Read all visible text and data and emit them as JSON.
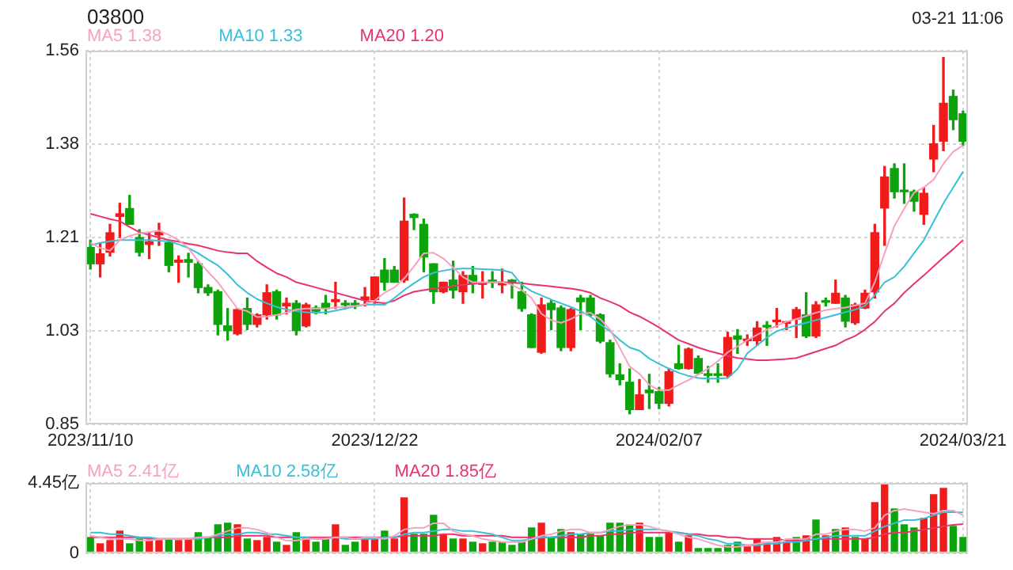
{
  "chart_data": [
    {
      "type": "candlestick",
      "title": "03800",
      "annotations": [
        "03-21 11:06"
      ],
      "legend": "top left",
      "grid": true,
      "categories": [
        "2023/11/10",
        null,
        null,
        null,
        null,
        null,
        null,
        null,
        null,
        null,
        null,
        null,
        null,
        null,
        null,
        null,
        null,
        null,
        null,
        null,
        null,
        null,
        null,
        null,
        null,
        null,
        null,
        null,
        null,
        "2023/12/22",
        null,
        null,
        null,
        null,
        null,
        null,
        null,
        null,
        null,
        null,
        null,
        null,
        null,
        null,
        null,
        null,
        null,
        null,
        null,
        null,
        null,
        null,
        null,
        null,
        null,
        null,
        null,
        null,
        "2024/02/07",
        null,
        null,
        null,
        null,
        null,
        null,
        null,
        null,
        null,
        null,
        null,
        null,
        null,
        null,
        null,
        null,
        null,
        null,
        null,
        null,
        null,
        null,
        null,
        null,
        null,
        null,
        null,
        null,
        null,
        null,
        "2024/03/21"
      ],
      "ylim": [
        0.85,
        1.56
      ],
      "yticks": [
        {
          "value": 0.85,
          "label": "0.85"
        },
        {
          "value": 1.0275,
          "label": "1.03"
        },
        {
          "value": 1.205,
          "label": "1.21"
        },
        {
          "value": 1.3825,
          "label": "1.38"
        },
        {
          "value": 1.56,
          "label": "1.56"
        }
      ],
      "ohlc": [
        [
          1.186,
          1.2,
          1.145,
          1.155
        ],
        [
          1.155,
          1.195,
          1.13,
          1.174
        ],
        [
          1.177,
          1.23,
          1.17,
          1.214
        ],
        [
          1.245,
          1.27,
          1.205,
          1.25
        ],
        [
          1.26,
          1.285,
          1.23,
          1.23
        ],
        [
          1.205,
          1.22,
          1.17,
          1.177
        ],
        [
          1.192,
          1.215,
          1.165,
          1.197
        ],
        [
          1.21,
          1.232,
          1.19,
          1.215
        ],
        [
          1.195,
          1.2,
          1.14,
          1.152
        ],
        [
          1.158,
          1.17,
          1.12,
          1.162
        ],
        [
          1.163,
          1.175,
          1.13,
          1.158
        ],
        [
          1.155,
          1.16,
          1.1,
          1.11
        ],
        [
          1.11,
          1.115,
          1.095,
          1.1
        ],
        [
          1.102,
          1.105,
          1.02,
          1.04
        ],
        [
          1.037,
          1.07,
          1.01,
          1.028
        ],
        [
          1.022,
          1.07,
          1.02,
          1.068
        ],
        [
          1.07,
          1.09,
          1.03,
          1.04
        ],
        [
          1.04,
          1.06,
          1.035,
          1.058
        ],
        [
          1.058,
          1.115,
          1.05,
          1.1
        ],
        [
          1.102,
          1.105,
          1.05,
          1.058
        ],
        [
          1.075,
          1.09,
          1.06,
          1.08
        ],
        [
          1.08,
          1.085,
          1.02,
          1.028
        ],
        [
          1.037,
          1.08,
          1.035,
          1.077
        ],
        [
          1.071,
          1.075,
          1.06,
          1.065
        ],
        [
          1.08,
          1.095,
          1.06,
          1.07
        ],
        [
          1.083,
          1.12,
          1.07,
          1.087
        ],
        [
          1.08,
          1.085,
          1.07,
          1.077
        ],
        [
          1.08,
          1.085,
          1.07,
          1.077
        ],
        [
          1.087,
          1.11,
          1.075,
          1.092
        ],
        [
          1.087,
          1.13,
          1.08,
          1.13
        ],
        [
          1.143,
          1.165,
          1.105,
          1.12
        ],
        [
          1.143,
          1.15,
          1.12,
          1.12
        ],
        [
          1.124,
          1.28,
          1.12,
          1.236
        ],
        [
          1.249,
          1.25,
          1.22,
          1.243
        ],
        [
          1.23,
          1.24,
          1.14,
          1.168
        ],
        [
          1.155,
          1.155,
          1.08,
          1.102
        ],
        [
          1.102,
          1.12,
          1.1,
          1.12
        ],
        [
          1.124,
          1.16,
          1.09,
          1.105
        ],
        [
          1.102,
          1.14,
          1.08,
          1.133
        ],
        [
          1.133,
          1.15,
          1.1,
          1.117
        ],
        [
          1.116,
          1.14,
          1.09,
          1.119
        ],
        [
          1.124,
          1.14,
          1.11,
          1.12
        ],
        [
          1.115,
          1.145,
          1.1,
          1.12
        ],
        [
          1.124,
          1.125,
          1.09,
          1.12
        ],
        [
          1.102,
          1.12,
          1.065,
          1.07
        ],
        [
          1.058,
          1.06,
          0.996,
          0.996
        ],
        [
          0.987,
          1.09,
          0.985,
          1.077
        ],
        [
          1.08,
          1.085,
          1.03,
          1.068
        ],
        [
          1.071,
          1.075,
          0.99,
          0.996
        ],
        [
          0.996,
          1.07,
          0.99,
          1.068
        ],
        [
          1.09,
          1.095,
          1.03,
          1.083
        ],
        [
          1.09,
          1.095,
          1.055,
          1.058
        ],
        [
          1.058,
          1.06,
          1.005,
          1.008
        ],
        [
          1.005,
          1.01,
          0.94,
          0.946
        ],
        [
          0.944,
          0.965,
          0.925,
          0.935
        ],
        [
          0.93,
          0.955,
          0.87,
          0.878
        ],
        [
          0.878,
          0.935,
          0.878,
          0.906
        ],
        [
          0.915,
          0.945,
          0.88,
          0.91
        ],
        [
          0.912,
          0.92,
          0.88,
          0.89
        ],
        [
          0.89,
          0.955,
          0.885,
          0.95
        ],
        [
          0.965,
          1.0,
          0.955,
          0.956
        ],
        [
          0.956,
          0.995,
          0.955,
          0.993
        ],
        [
          0.975,
          0.98,
          0.945,
          0.947
        ],
        [
          0.945,
          0.96,
          0.93,
          0.943
        ],
        [
          0.945,
          0.965,
          0.93,
          0.943
        ],
        [
          0.943,
          1.025,
          0.94,
          1.015
        ],
        [
          1.018,
          1.03,
          0.985,
          1.012
        ],
        [
          1.009,
          1.02,
          1.0,
          1.012
        ],
        [
          1.009,
          1.045,
          1.0,
          1.033
        ],
        [
          1.037,
          1.045,
          1.0,
          1.035
        ],
        [
          1.045,
          1.07,
          1.035,
          1.048
        ],
        [
          1.042,
          1.045,
          1.03,
          1.045
        ],
        [
          1.05,
          1.072,
          1.015,
          1.068
        ],
        [
          1.058,
          1.1,
          1.015,
          1.018
        ],
        [
          1.018,
          1.083,
          1.015,
          1.077
        ],
        [
          1.083,
          1.09,
          1.075,
          1.082
        ],
        [
          1.08,
          1.124,
          1.08,
          1.099
        ],
        [
          1.09,
          1.095,
          1.035,
          1.046
        ],
        [
          1.043,
          1.08,
          1.04,
          1.077
        ],
        [
          1.071,
          1.105,
          1.07,
          1.099
        ],
        [
          1.102,
          1.23,
          1.09,
          1.214
        ],
        [
          1.261,
          1.34,
          1.19,
          1.32
        ],
        [
          1.336,
          1.345,
          1.28,
          1.292
        ],
        [
          1.293,
          1.345,
          1.27,
          1.292
        ],
        [
          1.292,
          1.295,
          1.255,
          1.274
        ],
        [
          1.249,
          1.3,
          1.23,
          1.289
        ],
        [
          1.354,
          1.418,
          1.33,
          1.383
        ],
        [
          1.388,
          1.547,
          1.37,
          1.46
        ],
        [
          1.473,
          1.485,
          1.41,
          1.429
        ],
        [
          1.44,
          1.445,
          1.38,
          1.388
        ]
      ],
      "colors": [
        "#0ca30c",
        "#f01b1b",
        "#f01b1b",
        "#f01b1b",
        "#0ca30c",
        "#0ca30c",
        "#f01b1b",
        "#f01b1b",
        "#0ca30c",
        "#f01b1b",
        "#0ca30c",
        "#0ca30c",
        "#0ca30c",
        "#0ca30c",
        "#0ca30c",
        "#f01b1b",
        "#0ca30c",
        "#f01b1b",
        "#f01b1b",
        "#0ca30c",
        "#f01b1b",
        "#0ca30c",
        "#f01b1b",
        "#0ca30c",
        "#0ca30c",
        "#f01b1b",
        "#0ca30c",
        "#0ca30c",
        "#f01b1b",
        "#f01b1b",
        "#0ca30c",
        "#0ca30c",
        "#f01b1b",
        "#0ca30c",
        "#0ca30c",
        "#0ca30c",
        "#f01b1b",
        "#0ca30c",
        "#f01b1b",
        "#0ca30c",
        "#f01b1b",
        "#0ca30c",
        "#f01b1b",
        "#0ca30c",
        "#0ca30c",
        "#0ca30c",
        "#f01b1b",
        "#0ca30c",
        "#0ca30c",
        "#f01b1b",
        "#0ca30c",
        "#0ca30c",
        "#0ca30c",
        "#0ca30c",
        "#0ca30c",
        "#0ca30c",
        "#f01b1b",
        "#0ca30c",
        "#0ca30c",
        "#f01b1b",
        "#0ca30c",
        "#f01b1b",
        "#0ca30c",
        "#0ca30c",
        "#0ca30c",
        "#f01b1b",
        "#0ca30c",
        "#f01b1b",
        "#f01b1b",
        "#0ca30c",
        "#f01b1b",
        "#f01b1b",
        "#f01b1b",
        "#0ca30c",
        "#f01b1b",
        "#0ca30c",
        "#f01b1b",
        "#0ca30c",
        "#f01b1b",
        "#f01b1b",
        "#f01b1b",
        "#f01b1b",
        "#0ca30c",
        "#0ca30c",
        "#0ca30c",
        "#f01b1b",
        "#f01b1b",
        "#f01b1b",
        "#0ca30c",
        "#0ca30c"
      ],
      "series": [
        {
          "type": "line",
          "name": "MA5 1.38",
          "color": "#f5a3bd",
          "values": [
            1.195,
            1.185,
            1.18,
            1.2,
            1.208,
            1.213,
            1.215,
            1.218,
            1.21,
            1.2,
            1.185,
            1.16,
            1.14,
            1.12,
            1.095,
            1.07,
            1.065,
            1.054,
            1.055,
            1.058,
            1.062,
            1.068,
            1.07,
            1.07,
            1.07,
            1.072,
            1.073,
            1.075,
            1.078,
            1.085,
            1.1,
            1.11,
            1.127,
            1.15,
            1.175,
            1.176,
            1.165,
            1.148,
            1.13,
            1.12,
            1.12,
            1.12,
            1.12,
            1.115,
            1.105,
            1.09,
            1.06,
            1.048,
            1.043,
            1.05,
            1.06,
            1.062,
            1.05,
            1.03,
            0.995,
            0.96,
            0.946,
            0.925,
            0.915,
            0.915,
            0.925,
            0.934,
            0.945,
            0.956,
            0.97,
            0.987,
            0.998,
            1.01,
            1.02,
            1.03,
            1.037,
            1.045,
            1.05,
            1.056,
            1.062,
            1.067,
            1.07,
            1.072,
            1.076,
            1.08,
            1.12,
            1.175,
            1.227,
            1.26,
            1.29,
            1.3,
            1.315,
            1.345,
            1.368,
            1.38
          ]
        },
        {
          "type": "line",
          "name": "MA10 1.33",
          "color": "#39bfd8",
          "values": [
            1.19,
            1.195,
            1.198,
            1.2,
            1.2,
            1.2,
            1.2,
            1.199,
            1.198,
            1.192,
            1.185,
            1.175,
            1.163,
            1.152,
            1.135,
            1.115,
            1.1,
            1.088,
            1.08,
            1.073,
            1.068,
            1.065,
            1.063,
            1.062,
            1.063,
            1.066,
            1.07,
            1.074,
            1.077,
            1.078,
            1.077,
            1.09,
            1.105,
            1.118,
            1.13,
            1.138,
            1.142,
            1.145,
            1.146,
            1.146,
            1.145,
            1.144,
            1.143,
            1.138,
            1.115,
            1.103,
            1.095,
            1.087,
            1.08,
            1.073,
            1.065,
            1.055,
            1.04,
            1.027,
            1.01,
            0.996,
            0.99,
            0.975,
            0.965,
            0.956,
            0.948,
            0.942,
            0.938,
            0.937,
            0.937,
            0.938,
            0.955,
            0.985,
            1.0,
            1.015,
            1.027,
            1.033,
            1.038,
            1.043,
            1.048,
            1.053,
            1.058,
            1.063,
            1.068,
            1.075,
            1.095,
            1.12,
            1.13,
            1.15,
            1.175,
            1.2,
            1.235,
            1.27,
            1.3,
            1.33
          ]
        },
        {
          "type": "line",
          "name": "MA20 1.20",
          "color": "#e8336c",
          "values": [
            1.25,
            1.245,
            1.24,
            1.236,
            1.225,
            1.215,
            1.21,
            1.205,
            1.2,
            1.197,
            1.193,
            1.19,
            1.185,
            1.18,
            1.177,
            1.175,
            1.175,
            1.16,
            1.148,
            1.137,
            1.13,
            1.12,
            1.115,
            1.11,
            1.105,
            1.1,
            1.095,
            1.09,
            1.085,
            1.082,
            1.08,
            1.085,
            1.095,
            1.102,
            1.105,
            1.108,
            1.11,
            1.113,
            1.115,
            1.117,
            1.119,
            1.12,
            1.12,
            1.119,
            1.118,
            1.116,
            1.114,
            1.112,
            1.11,
            1.108,
            1.105,
            1.1,
            1.09,
            1.083,
            1.075,
            1.063,
            1.055,
            1.045,
            1.034,
            1.022,
            1.01,
            1.003,
            0.996,
            0.99,
            0.985,
            0.98,
            0.976,
            0.974,
            0.972,
            0.972,
            0.973,
            0.974,
            0.976,
            0.982,
            0.988,
            0.994,
            1.0,
            1.01,
            1.018,
            1.03,
            1.045,
            1.065,
            1.08,
            1.1,
            1.117,
            1.133,
            1.15,
            1.167,
            1.183,
            1.2
          ]
        }
      ]
    },
    {
      "type": "bar",
      "legend": "top left",
      "grid": true,
      "tick_labels": "y",
      "categories": [
        "2023/11/10",
        null,
        null,
        null,
        null,
        null,
        null,
        null,
        null,
        null,
        null,
        null,
        null,
        null,
        null,
        null,
        null,
        null,
        null,
        null,
        null,
        null,
        null,
        null,
        null,
        null,
        null,
        null,
        null,
        "2023/12/22",
        null,
        null,
        null,
        null,
        null,
        null,
        null,
        null,
        null,
        null,
        null,
        null,
        null,
        null,
        null,
        null,
        null,
        null,
        null,
        null,
        null,
        null,
        null,
        null,
        null,
        null,
        null,
        null,
        "2024/02/07",
        null,
        null,
        null,
        null,
        null,
        null,
        null,
        null,
        null,
        null,
        null,
        null,
        null,
        null,
        null,
        null,
        null,
        null,
        null,
        null,
        null,
        null,
        null,
        null,
        null,
        null,
        null,
        null,
        null,
        null,
        "2024/03/21"
      ],
      "ylim": [
        0,
        4.45
      ],
      "yticks": [
        0,
        {
          "value": 4.45,
          "label": "4.45亿"
        }
      ],
      "series": [
        {
          "values": [
            1.0,
            0.6,
            0.8,
            1.4,
            0.6,
            0.9,
            0.8,
            0.8,
            0.9,
            0.8,
            0.9,
            1.3,
            1.0,
            1.8,
            1.9,
            1.8,
            0.9,
            0.8,
            1.0,
            0.7,
            0.5,
            1.3,
            0.9,
            0.7,
            0.9,
            1.8,
            0.5,
            0.7,
            0.9,
            0.9,
            1.4,
            0.9,
            3.5,
            1.2,
            1.2,
            2.4,
            1.2,
            0.9,
            0.9,
            0.7,
            0.6,
            0.7,
            0.7,
            0.5,
            0.7,
            1.6,
            1.9,
            1.0,
            1.5,
            1.3,
            1.2,
            1.2,
            1.1,
            1.9,
            1.9,
            1.8,
            1.9,
            1.0,
            1.0,
            1.3,
            0.7,
            1.1,
            0.3,
            0.3,
            0.3,
            0.5,
            0.7,
            0.4,
            0.9,
            0.7,
            1.0,
            0.7,
            1.0,
            1.1,
            2.1,
            1.1,
            1.5,
            1.6,
            1.0,
            0.9,
            3.2,
            4.45,
            2.8,
            1.8,
            1.6,
            2.2,
            3.7,
            4.1,
            1.7,
            1.0
          ],
          "colors": [
            "#0ca30c",
            "#f01b1b",
            "#f01b1b",
            "#f01b1b",
            "#0ca30c",
            "#0ca30c",
            "#f01b1b",
            "#f01b1b",
            "#0ca30c",
            "#f01b1b",
            "#f01b1b",
            "#0ca30c",
            "#0ca30c",
            "#0ca30c",
            "#0ca30c",
            "#f01b1b",
            "#0ca30c",
            "#f01b1b",
            "#f01b1b",
            "#0ca30c",
            "#f01b1b",
            "#0ca30c",
            "#f01b1b",
            "#0ca30c",
            "#0ca30c",
            "#f01b1b",
            "#0ca30c",
            "#0ca30c",
            "#f01b1b",
            "#f01b1b",
            "#0ca30c",
            "#f01b1b",
            "#f01b1b",
            "#0ca30c",
            "#0ca30c",
            "#0ca30c",
            "#f01b1b",
            "#0ca30c",
            "#f01b1b",
            "#0ca30c",
            "#f01b1b",
            "#0ca30c",
            "#0ca30c",
            "#0ca30c",
            "#0ca30c",
            "#0ca30c",
            "#f01b1b",
            "#0ca30c",
            "#0ca30c",
            "#f01b1b",
            "#0ca30c",
            "#0ca30c",
            "#0ca30c",
            "#0ca30c",
            "#0ca30c",
            "#0ca30c",
            "#f01b1b",
            "#0ca30c",
            "#0ca30c",
            "#f01b1b",
            "#0ca30c",
            "#f01b1b",
            "#0ca30c",
            "#0ca30c",
            "#0ca30c",
            "#0ca30c",
            "#0ca30c",
            "#f01b1b",
            "#f01b1b",
            "#f01b1b",
            "#f01b1b",
            "#f01b1b",
            "#0ca30c",
            "#f01b1b",
            "#0ca30c",
            "#f01b1b",
            "#0ca30c",
            "#f01b1b",
            "#0ca30c",
            "#f01b1b",
            "#f01b1b",
            "#f01b1b",
            "#0ca30c",
            "#0ca30c",
            "#0ca30c",
            "#f01b1b",
            "#f01b1b",
            "#f01b1b",
            "#0ca30c",
            "#0ca30c"
          ]
        },
        {
          "type": "line",
          "name": "MA5 2.41亿",
          "color": "#f5a3bd",
          "values": [
            1.1,
            1.0,
            0.9,
            0.9,
            0.9,
            0.8,
            0.8,
            0.9,
            0.9,
            0.9,
            0.9,
            1.0,
            1.0,
            1.2,
            1.4,
            1.6,
            1.6,
            1.5,
            1.3,
            1.0,
            0.8,
            0.8,
            0.9,
            0.9,
            0.9,
            1.0,
            1.0,
            0.9,
            1.0,
            1.0,
            0.9,
            1.1,
            1.5,
            1.6,
            1.6,
            1.9,
            1.9,
            1.4,
            1.2,
            1.1,
            0.9,
            0.8,
            0.7,
            0.7,
            0.7,
            0.9,
            1.1,
            1.2,
            1.4,
            1.5,
            1.5,
            1.3,
            1.3,
            1.5,
            1.7,
            1.8,
            1.8,
            1.7,
            1.5,
            1.4,
            1.2,
            1.0,
            0.9,
            0.7,
            0.5,
            0.4,
            0.4,
            0.5,
            0.6,
            0.7,
            0.7,
            0.9,
            0.9,
            0.9,
            1.2,
            1.2,
            1.4,
            1.5,
            1.5,
            1.4,
            1.6,
            2.4,
            2.7,
            2.8,
            2.7,
            2.6,
            2.5,
            2.7,
            2.7,
            2.41
          ]
        },
        {
          "type": "line",
          "name": "MA10 2.58亿",
          "color": "#39bfd8",
          "values": [
            1.3,
            1.3,
            1.2,
            1.2,
            1.1,
            1.0,
            1.0,
            0.9,
            0.9,
            0.9,
            0.9,
            0.9,
            1.0,
            1.1,
            1.2,
            1.2,
            1.3,
            1.3,
            1.2,
            1.2,
            1.1,
            1.0,
            1.0,
            0.9,
            0.9,
            1.0,
            0.9,
            0.9,
            0.9,
            0.9,
            1.0,
            1.0,
            1.2,
            1.3,
            1.3,
            1.4,
            1.5,
            1.5,
            1.4,
            1.4,
            1.3,
            1.2,
            1.0,
            0.8,
            0.8,
            0.9,
            1.0,
            1.0,
            1.1,
            1.2,
            1.2,
            1.3,
            1.3,
            1.4,
            1.4,
            1.5,
            1.5,
            1.5,
            1.5,
            1.4,
            1.3,
            1.2,
            1.1,
            0.9,
            0.8,
            0.6,
            0.6,
            0.5,
            0.5,
            0.6,
            0.6,
            0.7,
            0.7,
            0.8,
            0.9,
            1.0,
            1.1,
            1.1,
            1.1,
            1.1,
            1.4,
            1.7,
            1.9,
            2.1,
            2.1,
            2.2,
            2.4,
            2.6,
            2.6,
            2.58
          ]
        },
        {
          "type": "line",
          "name": "MA20 1.85亿",
          "color": "#e8336c",
          "values": [
            1.0,
            1.0,
            1.0,
            1.0,
            1.0,
            1.0,
            0.9,
            0.9,
            0.9,
            0.9,
            0.9,
            1.0,
            1.0,
            1.0,
            1.0,
            1.1,
            1.1,
            1.1,
            1.1,
            1.0,
            1.0,
            1.0,
            1.0,
            1.0,
            1.0,
            1.0,
            1.0,
            1.0,
            1.0,
            1.0,
            1.0,
            1.0,
            1.1,
            1.1,
            1.1,
            1.1,
            1.2,
            1.2,
            1.1,
            1.1,
            1.1,
            1.1,
            1.1,
            1.0,
            1.0,
            1.0,
            1.0,
            1.0,
            1.0,
            1.0,
            1.0,
            1.1,
            1.1,
            1.2,
            1.2,
            1.3,
            1.3,
            1.3,
            1.3,
            1.3,
            1.3,
            1.2,
            1.2,
            1.1,
            1.1,
            1.0,
            1.0,
            0.9,
            0.9,
            0.9,
            0.9,
            0.8,
            0.8,
            0.8,
            0.9,
            0.9,
            0.9,
            0.9,
            0.9,
            0.9,
            1.0,
            1.2,
            1.3,
            1.3,
            1.4,
            1.5,
            1.6,
            1.7,
            1.8,
            1.85
          ]
        }
      ]
    }
  ]
}
